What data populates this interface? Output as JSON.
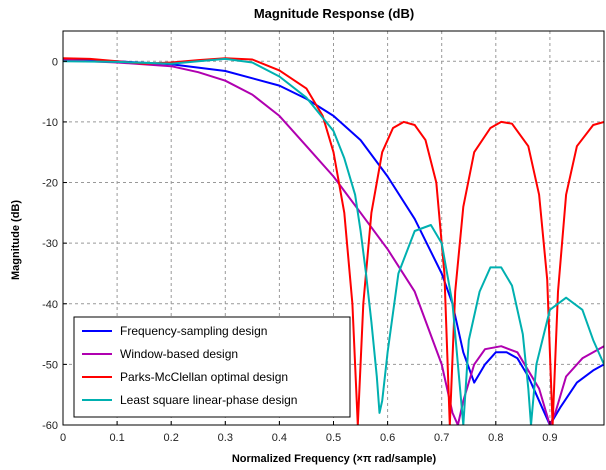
{
  "chart_data": {
    "type": "line",
    "title": "Magnitude Response (dB)",
    "xlabel": "Normalized Frequency (×π rad/sample)",
    "ylabel": "Magnitude (dB)",
    "xlim": [
      0,
      1
    ],
    "ylim": [
      -60,
      5
    ],
    "xticks": [
      0,
      0.1,
      0.2,
      0.3,
      0.4,
      0.5,
      0.6,
      0.7,
      0.8,
      0.9
    ],
    "xtick_labels": [
      "0",
      "0.1",
      "0.2",
      "0.3",
      "0.4",
      "0.5",
      "0.6",
      "0.7",
      "0.8",
      "0.9"
    ],
    "yticks": [
      0,
      -10,
      -20,
      -30,
      -40,
      -50,
      -60
    ],
    "ytick_labels": [
      "0",
      "-10",
      "-20",
      "-30",
      "-40",
      "-50",
      "-60"
    ],
    "grid": true,
    "legend_position": "bottom-left",
    "series": [
      {
        "name": "Frequency-sampling design",
        "color": "#0000ff",
        "points": [
          [
            0,
            0.3
          ],
          [
            0.1,
            0
          ],
          [
            0.2,
            -0.5
          ],
          [
            0.3,
            -1.6
          ],
          [
            0.4,
            -4
          ],
          [
            0.45,
            -6.2
          ],
          [
            0.5,
            -9
          ],
          [
            0.55,
            -13
          ],
          [
            0.6,
            -19
          ],
          [
            0.65,
            -26
          ],
          [
            0.7,
            -35
          ],
          [
            0.72,
            -40
          ],
          [
            0.74,
            -48
          ],
          [
            0.76,
            -53
          ],
          [
            0.78,
            -50
          ],
          [
            0.8,
            -48
          ],
          [
            0.82,
            -48
          ],
          [
            0.84,
            -49
          ],
          [
            0.86,
            -52
          ],
          [
            0.88,
            -56
          ],
          [
            0.9,
            -60
          ],
          [
            0.92,
            -57
          ],
          [
            0.95,
            -53
          ],
          [
            0.98,
            -51
          ],
          [
            1,
            -50
          ]
        ]
      },
      {
        "name": "Window-based design",
        "color": "#b000b0",
        "points": [
          [
            0,
            0.2
          ],
          [
            0.1,
            -0.2
          ],
          [
            0.2,
            -0.8
          ],
          [
            0.25,
            -1.8
          ],
          [
            0.3,
            -3.2
          ],
          [
            0.35,
            -5.5
          ],
          [
            0.4,
            -9
          ],
          [
            0.45,
            -14
          ],
          [
            0.5,
            -19
          ],
          [
            0.55,
            -25
          ],
          [
            0.6,
            -31
          ],
          [
            0.65,
            -38
          ],
          [
            0.7,
            -50
          ],
          [
            0.72,
            -58
          ],
          [
            0.73,
            -60
          ],
          [
            0.74,
            -56
          ],
          [
            0.76,
            -50
          ],
          [
            0.78,
            -47.5
          ],
          [
            0.81,
            -47
          ],
          [
            0.84,
            -48
          ],
          [
            0.88,
            -54
          ],
          [
            0.9,
            -60
          ],
          [
            0.91,
            -58
          ],
          [
            0.93,
            -52
          ],
          [
            0.96,
            -49
          ],
          [
            1,
            -47
          ]
        ]
      },
      {
        "name": "Parks-McClellan optimal design",
        "color": "#ff0000",
        "points": [
          [
            0,
            0.5
          ],
          [
            0.05,
            0.4
          ],
          [
            0.1,
            0
          ],
          [
            0.15,
            -0.4
          ],
          [
            0.2,
            -0.2
          ],
          [
            0.25,
            0.2
          ],
          [
            0.3,
            0.5
          ],
          [
            0.35,
            0.3
          ],
          [
            0.4,
            -1.5
          ],
          [
            0.45,
            -4.5
          ],
          [
            0.48,
            -9
          ],
          [
            0.5,
            -15
          ],
          [
            0.52,
            -25
          ],
          [
            0.535,
            -40
          ],
          [
            0.545,
            -60
          ],
          [
            0.555,
            -40
          ],
          [
            0.57,
            -25
          ],
          [
            0.59,
            -15
          ],
          [
            0.61,
            -11
          ],
          [
            0.63,
            -10
          ],
          [
            0.65,
            -10.5
          ],
          [
            0.67,
            -13
          ],
          [
            0.69,
            -20
          ],
          [
            0.705,
            -35
          ],
          [
            0.715,
            -60
          ],
          [
            0.725,
            -38
          ],
          [
            0.74,
            -24
          ],
          [
            0.76,
            -15
          ],
          [
            0.79,
            -11
          ],
          [
            0.81,
            -10
          ],
          [
            0.83,
            -10.3
          ],
          [
            0.86,
            -14
          ],
          [
            0.88,
            -22
          ],
          [
            0.895,
            -36
          ],
          [
            0.905,
            -60
          ],
          [
            0.915,
            -38
          ],
          [
            0.93,
            -22
          ],
          [
            0.95,
            -14
          ],
          [
            0.98,
            -10.5
          ],
          [
            1,
            -10
          ]
        ]
      },
      {
        "name": "Least square linear-phase design",
        "color": "#00b0b0",
        "points": [
          [
            0,
            0
          ],
          [
            0.1,
            -0.1
          ],
          [
            0.2,
            -0.4
          ],
          [
            0.25,
            0
          ],
          [
            0.3,
            0.4
          ],
          [
            0.35,
            -0.2
          ],
          [
            0.4,
            -2.5
          ],
          [
            0.45,
            -6
          ],
          [
            0.5,
            -11.5
          ],
          [
            0.52,
            -16
          ],
          [
            0.54,
            -22
          ],
          [
            0.55,
            -28
          ],
          [
            0.56,
            -35
          ],
          [
            0.57,
            -43
          ],
          [
            0.58,
            -52
          ],
          [
            0.585,
            -58
          ],
          [
            0.59,
            -56
          ],
          [
            0.6,
            -48
          ],
          [
            0.62,
            -35
          ],
          [
            0.65,
            -28
          ],
          [
            0.68,
            -27
          ],
          [
            0.7,
            -30
          ],
          [
            0.72,
            -40
          ],
          [
            0.73,
            -50
          ],
          [
            0.74,
            -60
          ],
          [
            0.75,
            -46
          ],
          [
            0.77,
            -38
          ],
          [
            0.79,
            -34
          ],
          [
            0.81,
            -34
          ],
          [
            0.83,
            -37
          ],
          [
            0.85,
            -45
          ],
          [
            0.86,
            -54
          ],
          [
            0.865,
            -60
          ],
          [
            0.875,
            -50
          ],
          [
            0.9,
            -41
          ],
          [
            0.93,
            -39
          ],
          [
            0.96,
            -41
          ],
          [
            0.98,
            -46
          ],
          [
            1,
            -50
          ]
        ]
      }
    ]
  }
}
